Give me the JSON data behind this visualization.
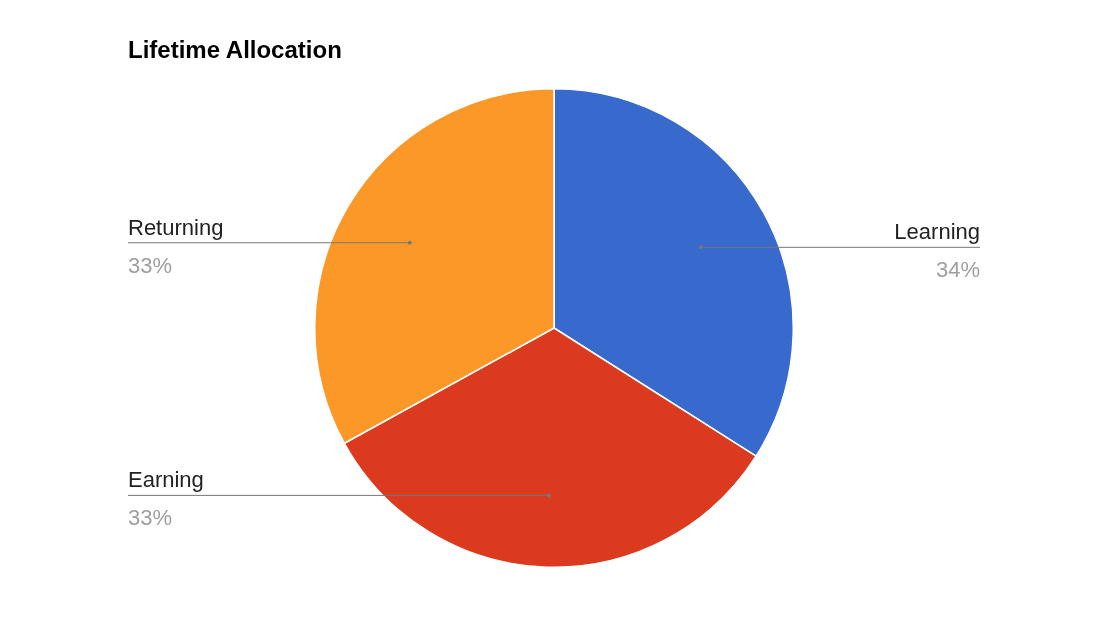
{
  "chart_data": {
    "type": "pie",
    "title": "Lifetime Allocation",
    "categories": [
      "Learning",
      "Earning",
      "Returning"
    ],
    "values": [
      34,
      33,
      33
    ],
    "value_labels": [
      "34%",
      "33%",
      "33%"
    ],
    "colors": [
      "#3869cc",
      "#dc3a1f",
      "#fb9827"
    ],
    "legend": false
  }
}
